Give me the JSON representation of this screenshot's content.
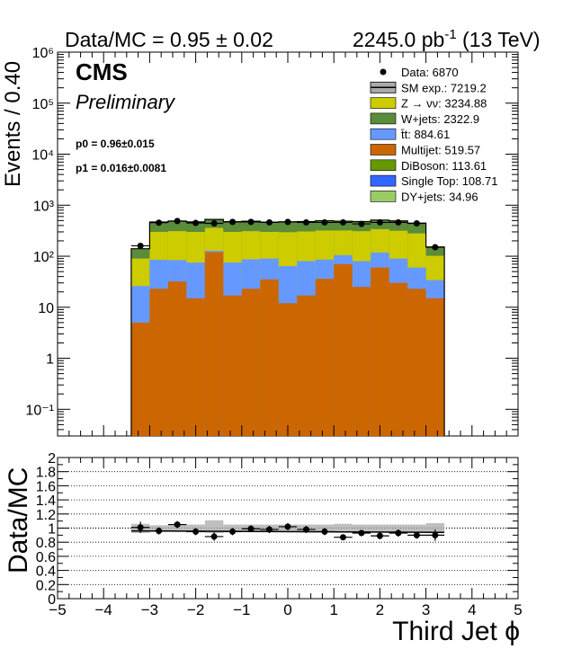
{
  "header": {
    "left": "Data/MC = 0.95 ± 0.02",
    "lumi": "2245.0 pb",
    "lumi_sup": "-1",
    "lumi_suffix": " (13 TeV)"
  },
  "cms": {
    "label": "CMS",
    "sublabel": "Preliminary"
  },
  "fit": {
    "p0": "p0 = 0.96±0.015",
    "p1": "p1 = 0.016±0.0081"
  },
  "colors": {
    "znunu": "#cccc00",
    "wjets": "#5a8c3a",
    "ttbar": "#6699ff",
    "multijet": "#cc6600",
    "diboson": "#669900",
    "singletop": "#3366ff",
    "dyjets": "#99cc66",
    "data": "#000000",
    "band": "#aaaaaa"
  },
  "chart_data": [
    {
      "type": "bar",
      "subtype": "stacked-histogram",
      "ylabel": "Events / 0.40",
      "yscale": "log",
      "ylim": [
        0.03,
        1000000
      ],
      "xlim": [
        -5,
        5
      ],
      "yticks_major": [
        "10⁻¹",
        "1",
        "10",
        "10²",
        "10³",
        "10⁴",
        "10⁵",
        "10⁶"
      ],
      "bin_edges": [
        -3.4,
        -3.0,
        -2.6,
        -2.2,
        -1.8,
        -1.4,
        -1.0,
        -0.6,
        -0.2,
        0.2,
        0.6,
        1.0,
        1.4,
        1.8,
        2.2,
        2.6,
        3.0,
        3.4
      ],
      "legend_position": "top-right",
      "data": {
        "name": "Data: 6870",
        "values": [
          160,
          455,
          490,
          450,
          440,
          470,
          470,
          460,
          470,
          460,
          460,
          460,
          430,
          460,
          460,
          440,
          150
        ]
      },
      "sm_total": {
        "name": "SM exp.: 7219.2"
      },
      "series": [
        {
          "name": "Multijet: 519.57",
          "key": "multijet",
          "values": [
            5,
            23,
            32,
            15,
            120,
            17,
            23,
            35,
            12,
            17,
            36,
            70,
            25,
            60,
            30,
            23,
            15
          ]
        },
        {
          "name": "t̄t: 884.61",
          "key": "ttbar",
          "values": [
            21,
            62,
            52,
            60,
            8,
            58,
            64,
            55,
            52,
            63,
            50,
            35,
            55,
            58,
            60,
            37,
            19
          ]
        },
        {
          "name": "Z → νν: 3234.88",
          "key": "znunu",
          "values": [
            64,
            215,
            226,
            224,
            232,
            225,
            223,
            210,
            232,
            226,
            234,
            215,
            230,
            222,
            226,
            220,
            68
          ]
        },
        {
          "name": "W+jets: 2322.9",
          "key": "wjets",
          "values": [
            45,
            152,
            160,
            155,
            150,
            160,
            160,
            150,
            160,
            156,
            160,
            150,
            152,
            155,
            160,
            150,
            45
          ]
        },
        {
          "name": "DiBoson: 113.61",
          "key": "diboson",
          "values": [
            2.3,
            7,
            7,
            7,
            7,
            7,
            7,
            7,
            7,
            7,
            7,
            7,
            7,
            7,
            7,
            7,
            2.3
          ]
        },
        {
          "name": "Single Top: 108.71",
          "key": "singletop",
          "values": [
            2.2,
            7,
            7,
            7,
            7,
            7,
            7,
            7,
            7,
            7,
            7,
            7,
            7,
            7,
            7,
            7,
            2.2
          ]
        },
        {
          "name": "DY+jets: 34.96",
          "key": "dyjets",
          "values": [
            0.7,
            2,
            2,
            2,
            2,
            2,
            2,
            2,
            2,
            2,
            2,
            2,
            2,
            2,
            2,
            2,
            0.7
          ]
        }
      ]
    },
    {
      "type": "scatter",
      "subtype": "ratio",
      "ylabel": "Data/MC",
      "xlabel": "Third Jet ϕ",
      "xlim": [
        -5,
        5
      ],
      "ylim": [
        0,
        2
      ],
      "xticks": [
        "−5",
        "−4",
        "−3",
        "−2",
        "−1",
        "0",
        "1",
        "2",
        "3",
        "4",
        "5"
      ],
      "yticks": [
        "0",
        "0.2",
        "0.4",
        "0.6",
        "0.8",
        "1",
        "1.2",
        "1.4",
        "1.6",
        "1.8",
        "2"
      ],
      "grid": true,
      "ratio": [
        1.01,
        0.96,
        1.05,
        0.95,
        0.88,
        0.95,
        0.99,
        0.98,
        1.02,
        0.98,
        0.95,
        0.87,
        0.93,
        0.89,
        0.93,
        0.9,
        0.9
      ],
      "errors": [
        0.08,
        0.05,
        0.05,
        0.05,
        0.06,
        0.05,
        0.05,
        0.05,
        0.05,
        0.05,
        0.05,
        0.04,
        0.04,
        0.05,
        0.05,
        0.05,
        0.08
      ],
      "band_lo": [
        0.93,
        0.95,
        0.96,
        0.94,
        0.93,
        0.94,
        0.95,
        0.95,
        0.95,
        0.95,
        0.95,
        0.94,
        0.95,
        0.95,
        0.95,
        0.95,
        0.93
      ],
      "band_hi": [
        1.06,
        1.04,
        1.05,
        1.05,
        1.11,
        1.05,
        1.05,
        1.05,
        1.05,
        1.05,
        1.05,
        1.06,
        1.05,
        1.05,
        1.05,
        1.05,
        1.07
      ],
      "fit_line": {
        "x": [
          -3.4,
          3.4
        ],
        "y": [
          0.96,
          0.94
        ]
      }
    }
  ]
}
